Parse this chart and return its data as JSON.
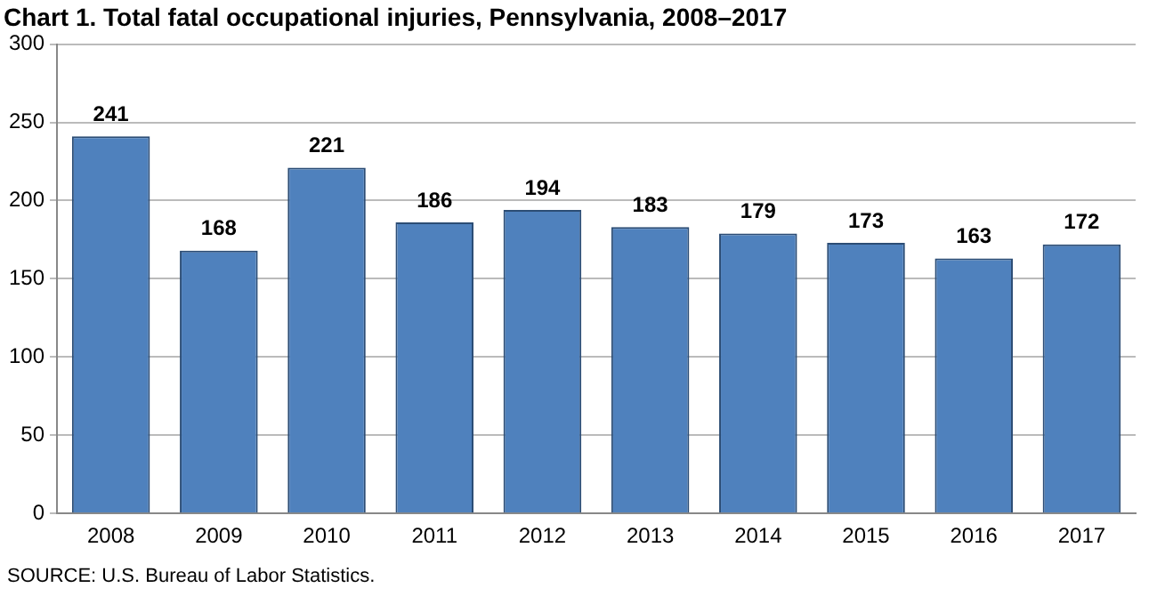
{
  "chart_data": {
    "type": "bar",
    "title": "Chart 1. Total fatal occupational injuries, Pennsylvania, 2008–2017",
    "categories": [
      "2008",
      "2009",
      "2010",
      "2011",
      "2012",
      "2013",
      "2014",
      "2015",
      "2016",
      "2017"
    ],
    "values": [
      241,
      168,
      221,
      186,
      194,
      183,
      179,
      173,
      163,
      172
    ],
    "color": "#4f81bd",
    "ylim": [
      0,
      300
    ],
    "yticks": [
      0,
      50,
      100,
      150,
      200,
      250,
      300
    ],
    "grid": "y",
    "data_labels": true,
    "legend": false,
    "annotations": [
      "SOURCE: U.S. Bureau of Labor Statistics."
    ]
  }
}
